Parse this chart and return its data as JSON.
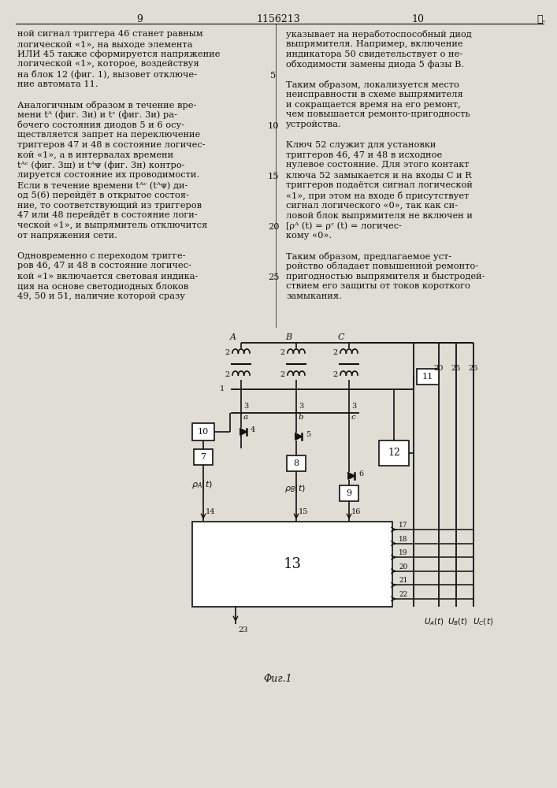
{
  "page_number_left": "9",
  "patent_number": "1156213",
  "page_number_right": "10",
  "star": "★.",
  "left_column_lines": [
    "ной сигнал триггера 46 станет равным",
    "логической «1», на выходе элемента",
    "ИЛИ 45 также сформируется напряжение",
    "логической «1», которое, воздействуя",
    "на блок 12 (фиг. 1), вызовет отключе-",
    "ние автомата 11.",
    "",
    "Аналогичным образом в течение вре-",
    "мени tᴬ (фиг. 3и) и tᶜ (фиг. 3и) ра-",
    "бочего состояния диодов 5 и 6 осу-",
    "ществляется запрет на переключение",
    "триггеров 47 и 48 в состояние логичес-",
    "кой «1», а в интервалах времени",
    "tᴬᶜ (фиг. 3ш) и tᴬᴪ (фиг. 3н) контро-",
    "лируется состояние их проводимости.",
    "Если в течение времени tᴬᶜ (tᴬᴪ) ди-",
    "од 5(6) перейдёт в открытое состоя-",
    "ние, то соответствующий из триггеров",
    "47 или 48 перейдёт в состояние логи-",
    "ческой «1», и выпрямитель отключится",
    "от напряжения сети.",
    "",
    "Одновременно с переходом тригге-",
    "ров 46, 47 и 48 в состояние логичес-",
    "кой «1» включается световая индика-",
    "ция на основе светодиодных блоков",
    "49, 50 и 51, наличие которой сразу"
  ],
  "right_column_lines": [
    "указывает на неработоспособный диод",
    "выпрямителя. Например, включение",
    "индикатора 50 свидетельствует о не-",
    "обходимости замены диода 5 фазы В.",
    "",
    "Таким образом, локализуется место",
    "неисправности в схеме выпрямителя",
    "и сокращается время на его ремонт,",
    "чем повышается ремонто-пригодность",
    "устройства.",
    "",
    "Ключ 52 служит для установки",
    "триггеров 46, 47 и 48 в исходное",
    "нулевое состояние. Для этого контакт",
    "ключа 52 замыкается и на входы C и R",
    "триггеров подаётся сигнал логической",
    "«1», при этом на входе б присутствует",
    "сигнал логического «0», так как си-",
    "ловой блок выпрямителя не включен и",
    "[ρᴬ (t) = ρᶜ (t) = логичес-",
    "кому «0».",
    "",
    "Таким образом, предлагаемое уст-",
    "ройство обладает повышенной ремонто-",
    "пригодностью выпрямителя и быстродей-",
    "ствием его защиты от токов короткого",
    "замыкания."
  ],
  "line_numbers": {
    "4": "5",
    "9": "10",
    "14": "15",
    "19": "20",
    "24": "25"
  },
  "fig_caption": "Φиг.1",
  "bg_color": "#e0ddd5",
  "text_color": "#111111"
}
